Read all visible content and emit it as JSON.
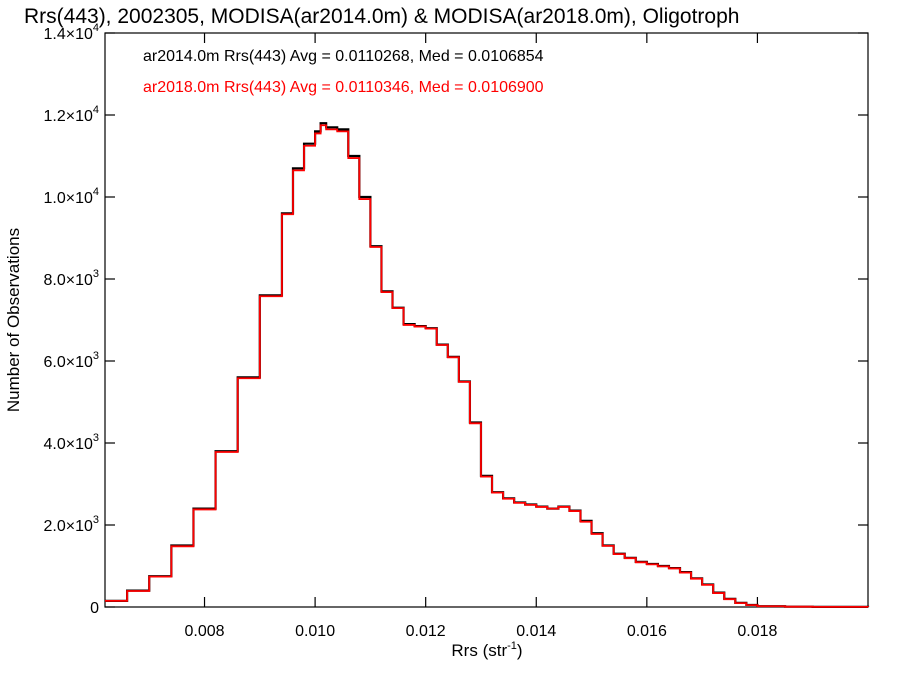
{
  "chart_data": {
    "type": "line",
    "style": "step-histogram",
    "title": "Rrs(443), 2002305, MODISA(ar2014.0m) & MODISA(ar2018.0m), Oligotroph",
    "xlabel": "Rrs (str",
    "xlabel_sup": "-1",
    "xlabel_end": ")",
    "ylabel": "Number of Observations",
    "xlim": [
      0.0062,
      0.02
    ],
    "ylim": [
      0,
      14000
    ],
    "grid": false,
    "x_ticks": [
      {
        "value": 0.008,
        "label": "0.008"
      },
      {
        "value": 0.01,
        "label": "0.010"
      },
      {
        "value": 0.012,
        "label": "0.012"
      },
      {
        "value": 0.014,
        "label": "0.014"
      },
      {
        "value": 0.016,
        "label": "0.016"
      },
      {
        "value": 0.018,
        "label": "0.018"
      }
    ],
    "y_ticks": [
      {
        "value": 0,
        "mant": "0",
        "exp": ""
      },
      {
        "value": 2000,
        "mant": "2.0×10",
        "exp": "3"
      },
      {
        "value": 4000,
        "mant": "4.0×10",
        "exp": "3"
      },
      {
        "value": 6000,
        "mant": "6.0×10",
        "exp": "3"
      },
      {
        "value": 8000,
        "mant": "8.0×10",
        "exp": "3"
      },
      {
        "value": 10000,
        "mant": "1.0×10",
        "exp": "4"
      },
      {
        "value": 12000,
        "mant": "1.2×10",
        "exp": "4"
      },
      {
        "value": 14000,
        "mant": "1.4×10",
        "exp": "4"
      }
    ],
    "legend_position": "top-left",
    "series": [
      {
        "name": "ar2014.0m",
        "legend_text": "ar2014.0m Rrs(443) Avg = 0.0110268, Med = 0.0106854",
        "color": "#000000",
        "x": [
          0.0062,
          0.0066,
          0.007,
          0.0074,
          0.0078,
          0.0082,
          0.0086,
          0.009,
          0.0094,
          0.0096,
          0.0098,
          0.01,
          0.0101,
          0.0102,
          0.0104,
          0.0106,
          0.0108,
          0.011,
          0.0112,
          0.0114,
          0.0116,
          0.0118,
          0.012,
          0.0122,
          0.0124,
          0.0126,
          0.0128,
          0.013,
          0.0132,
          0.0134,
          0.0136,
          0.0138,
          0.014,
          0.0142,
          0.0144,
          0.0146,
          0.0148,
          0.015,
          0.0152,
          0.0154,
          0.0156,
          0.0158,
          0.016,
          0.0162,
          0.0164,
          0.0166,
          0.0168,
          0.017,
          0.0172,
          0.0174,
          0.0176,
          0.0178,
          0.018,
          0.0185,
          0.019,
          0.02
        ],
        "y": [
          150,
          400,
          750,
          1500,
          2400,
          3800,
          5600,
          7600,
          9600,
          10700,
          11300,
          11600,
          11800,
          11700,
          11650,
          11000,
          10000,
          8800,
          7700,
          7300,
          6900,
          6850,
          6800,
          6400,
          6100,
          5500,
          4500,
          3200,
          2800,
          2650,
          2550,
          2500,
          2450,
          2400,
          2450,
          2350,
          2100,
          1800,
          1500,
          1300,
          1200,
          1100,
          1050,
          1000,
          950,
          850,
          700,
          550,
          350,
          200,
          100,
          50,
          20,
          8,
          3,
          0
        ]
      },
      {
        "name": "ar2018.0m",
        "legend_text": "ar2018.0m Rrs(443) Avg = 0.0110346, Med = 0.0106900",
        "color": "#ff0000",
        "x": [
          0.0062,
          0.0066,
          0.007,
          0.0074,
          0.0078,
          0.0082,
          0.0086,
          0.009,
          0.0094,
          0.0096,
          0.0098,
          0.01,
          0.0101,
          0.0102,
          0.0104,
          0.0106,
          0.0108,
          0.011,
          0.0112,
          0.0114,
          0.0116,
          0.0118,
          0.012,
          0.0122,
          0.0124,
          0.0126,
          0.0128,
          0.013,
          0.0132,
          0.0134,
          0.0136,
          0.0138,
          0.014,
          0.0142,
          0.0144,
          0.0146,
          0.0148,
          0.015,
          0.0152,
          0.0154,
          0.0156,
          0.0158,
          0.016,
          0.0162,
          0.0164,
          0.0166,
          0.0168,
          0.017,
          0.0172,
          0.0174,
          0.0176,
          0.0178,
          0.018,
          0.0185,
          0.019,
          0.02
        ],
        "y": [
          150,
          390,
          740,
          1480,
          2380,
          3780,
          5580,
          7580,
          9580,
          10650,
          11250,
          11550,
          11750,
          11650,
          11600,
          10950,
          9950,
          8780,
          7680,
          7290,
          6880,
          6840,
          6790,
          6390,
          6090,
          5490,
          4480,
          3180,
          2790,
          2640,
          2540,
          2490,
          2440,
          2400,
          2440,
          2340,
          2080,
          1780,
          1490,
          1290,
          1190,
          1090,
          1040,
          990,
          940,
          840,
          690,
          540,
          340,
          190,
          95,
          45,
          18,
          7,
          3,
          0
        ]
      }
    ]
  }
}
